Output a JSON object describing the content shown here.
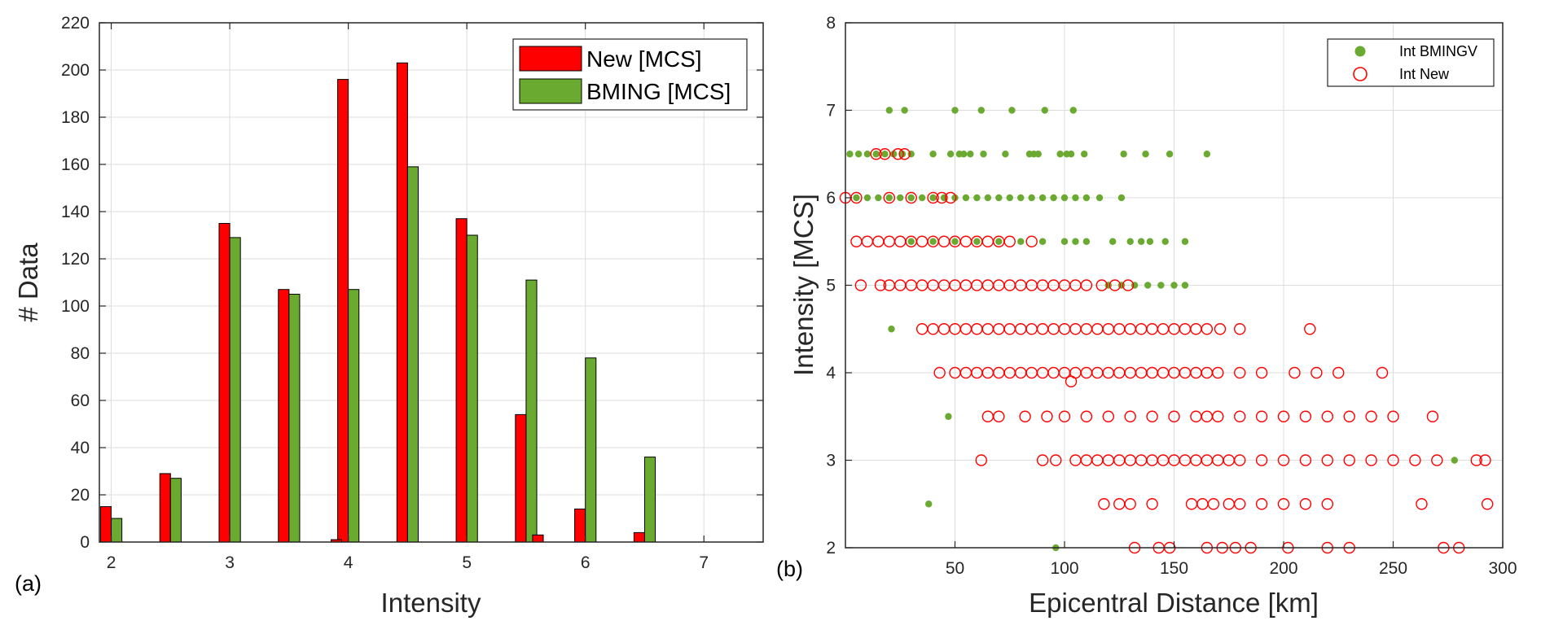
{
  "charts": [
    {
      "panel_label": "(a)",
      "chart_data": {
        "type": "bar",
        "xlabel": "Intensity",
        "ylabel": "# Data",
        "xlim": [
          1.9,
          7.5
        ],
        "ylim": [
          0,
          220
        ],
        "xticks": [
          2,
          3,
          4,
          5,
          6,
          7
        ],
        "xticklabels": [
          "2",
          "3",
          "4",
          "5",
          "6",
          "7"
        ],
        "yticks": [
          0,
          20,
          40,
          60,
          80,
          100,
          120,
          140,
          160,
          180,
          200,
          220
        ],
        "yticklabels": [
          "0",
          "20",
          "40",
          "60",
          "80",
          "100",
          "120",
          "140",
          "160",
          "180",
          "200",
          "220"
        ],
        "grid": true,
        "legend_position": "top-right",
        "categories": [
          2,
          2.5,
          3,
          3.5,
          4,
          4.5,
          5,
          5.5,
          6,
          6.5
        ],
        "series": [
          {
            "name": "New [MCS]",
            "color": "#ff0000",
            "values": [
              15,
              29,
              135,
              107,
              196,
              203,
              137,
              54,
              14,
              4
            ],
            "extra": [
              {
                "x": 3.9,
                "value": 1
              },
              {
                "x": 5.6,
                "value": 3
              }
            ]
          },
          {
            "name": "BMING [MCS]",
            "color": "#6aaa30",
            "values": [
              10,
              27,
              129,
              105,
              107,
              159,
              130,
              111,
              78,
              36
            ]
          }
        ]
      }
    },
    {
      "panel_label": "(b)",
      "chart_data": {
        "type": "scatter",
        "xlabel": "Epicentral Distance [km]",
        "ylabel": "Intensity [MCS]",
        "xlim": [
          0,
          300
        ],
        "ylim": [
          2,
          8
        ],
        "xticks": [
          50,
          100,
          150,
          200,
          250,
          300
        ],
        "xticklabels": [
          "50",
          "100",
          "150",
          "200",
          "250",
          "300"
        ],
        "yticks": [
          2,
          3,
          4,
          5,
          6,
          7,
          8
        ],
        "yticklabels": [
          "2",
          "3",
          "4",
          "5",
          "6",
          "7",
          "8"
        ],
        "grid": true,
        "legend_position": "top-right",
        "series": [
          {
            "name": "Int BMINGV",
            "color": "#6aaa30",
            "marker": "filled-dot",
            "rows": [
              {
                "y": 7,
                "x": [
                  20,
                  27,
                  50,
                  62,
                  76,
                  91,
                  104
                ]
              },
              {
                "y": 6.5,
                "x": [
                  2,
                  6,
                  10,
                  14,
                  18,
                  22,
                  26,
                  30,
                  40,
                  48,
                  52,
                  54,
                  57,
                  63,
                  73,
                  84,
                  86,
                  88,
                  98,
                  101,
                  103,
                  109,
                  127,
                  137,
                  148,
                  165
                ]
              },
              {
                "y": 6,
                "x": [
                  5,
                  10,
                  15,
                  20,
                  25,
                  30,
                  35,
                  40,
                  45,
                  50,
                  55,
                  60,
                  65,
                  70,
                  75,
                  80,
                  85,
                  90,
                  95,
                  100,
                  105,
                  110,
                  116,
                  126
                ]
              },
              {
                "y": 5.5,
                "x": [
                  30,
                  40,
                  50,
                  60,
                  70,
                  80,
                  90,
                  100,
                  105,
                  110,
                  122,
                  130,
                  135,
                  139,
                  146,
                  155
                ]
              },
              {
                "y": 5,
                "x": [
                  120,
                  126,
                  132,
                  138,
                  144,
                  150,
                  155
                ]
              },
              {
                "y": 4.5,
                "x": [
                  21
                ]
              },
              {
                "y": 3.5,
                "x": [
                  47
                ]
              },
              {
                "y": 3,
                "x": [
                  278
                ]
              },
              {
                "y": 2.5,
                "x": [
                  38
                ]
              },
              {
                "y": 2,
                "x": [
                  96
                ]
              }
            ]
          },
          {
            "name": "Int New",
            "color": "#ff0000",
            "marker": "open-circle",
            "rows": [
              {
                "y": 6.5,
                "x": [
                  14,
                  18,
                  24,
                  27
                ]
              },
              {
                "y": 6,
                "x": [
                  0,
                  5,
                  20,
                  30,
                  40,
                  44,
                  48
                ]
              },
              {
                "y": 5.5,
                "x": [
                  5,
                  10,
                  15,
                  20,
                  25,
                  30,
                  35,
                  40,
                  45,
                  50,
                  55,
                  60,
                  65,
                  70,
                  75,
                  85
                ]
              },
              {
                "y": 5,
                "x": [
                  7,
                  16,
                  20,
                  25,
                  30,
                  35,
                  40,
                  45,
                  50,
                  55,
                  60,
                  65,
                  70,
                  75,
                  80,
                  85,
                  90,
                  95,
                  100,
                  105,
                  110,
                  117,
                  123,
                  129
                ]
              },
              {
                "y": 4.5,
                "x": [
                  35,
                  40,
                  45,
                  50,
                  55,
                  60,
                  65,
                  70,
                  75,
                  80,
                  85,
                  90,
                  95,
                  100,
                  105,
                  110,
                  115,
                  120,
                  125,
                  130,
                  135,
                  140,
                  145,
                  150,
                  155,
                  160,
                  165,
                  171,
                  180,
                  212
                ]
              },
              {
                "y": 4,
                "x": [
                  43,
                  50,
                  55,
                  60,
                  65,
                  70,
                  75,
                  80,
                  85,
                  90,
                  95,
                  100,
                  105,
                  110,
                  115,
                  120,
                  125,
                  130,
                  135,
                  140,
                  145,
                  150,
                  155,
                  160,
                  165,
                  170,
                  180,
                  190,
                  205,
                  215,
                  225,
                  245
                ]
              },
              {
                "y": 3.9,
                "x": [
                  103
                ]
              },
              {
                "y": 3.5,
                "x": [
                  65,
                  70,
                  82,
                  92,
                  100,
                  110,
                  120,
                  130,
                  140,
                  150,
                  160,
                  165,
                  170,
                  180,
                  190,
                  200,
                  210,
                  220,
                  230,
                  240,
                  250,
                  268
                ]
              },
              {
                "y": 3,
                "x": [
                  62,
                  90,
                  96,
                  105,
                  110,
                  115,
                  120,
                  125,
                  130,
                  135,
                  140,
                  145,
                  150,
                  155,
                  160,
                  165,
                  170,
                  175,
                  180,
                  190,
                  200,
                  210,
                  220,
                  230,
                  240,
                  250,
                  260,
                  270,
                  288,
                  292
                ]
              },
              {
                "y": 2.5,
                "x": [
                  118,
                  125,
                  130,
                  140,
                  158,
                  163,
                  168,
                  175,
                  180,
                  190,
                  200,
                  210,
                  220,
                  263,
                  293
                ]
              },
              {
                "y": 2,
                "x": [
                  132,
                  143,
                  148,
                  165,
                  172,
                  178,
                  185,
                  202,
                  220,
                  230,
                  273,
                  280
                ]
              }
            ]
          }
        ]
      }
    }
  ]
}
